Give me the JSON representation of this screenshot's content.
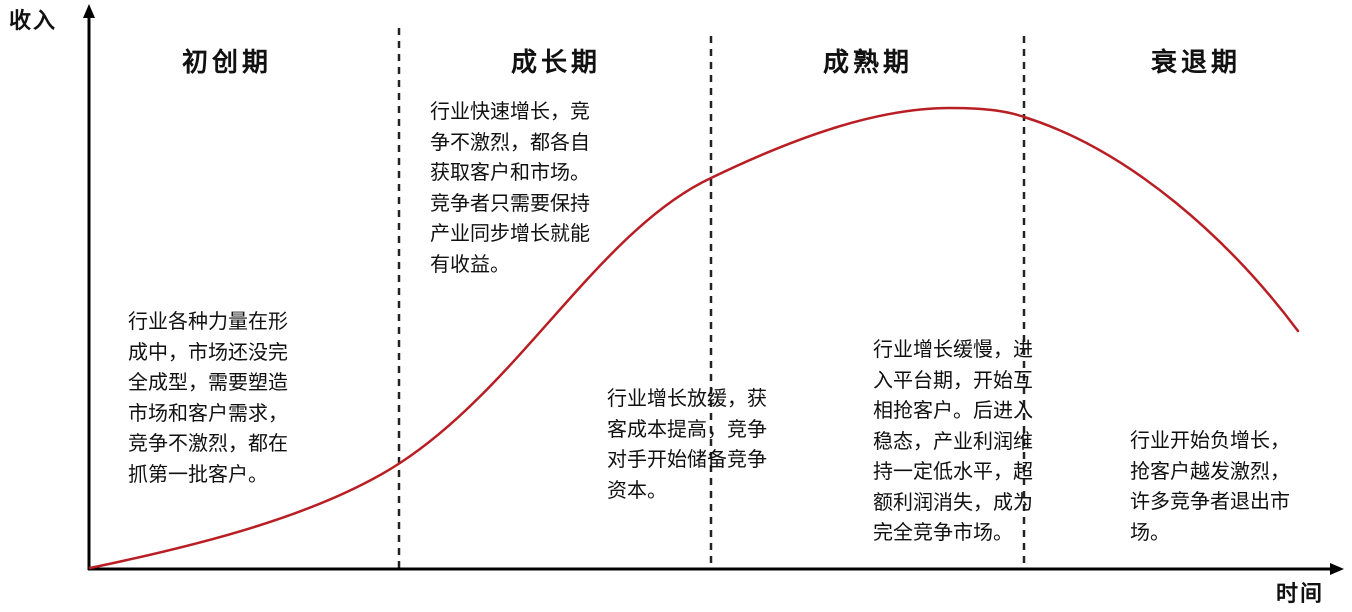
{
  "axes": {
    "y_label": "收入",
    "x_label": "时间"
  },
  "stages": [
    {
      "title": "初创期",
      "descriptions": [
        "行业各种力量在形\n成中，市场还没完\n全成型，需要塑造\n市场和客户需求，\n竞争不激烈，都在\n抓第一批客户。"
      ]
    },
    {
      "title": "成长期",
      "descriptions": [
        "行业快速增长，竞\n争不激烈，都各自\n获取客户和市场。\n竞争者只需要保持\n产业同步增长就能\n有收益。",
        "行业增长放缓，获\n客成本提高，竞争\n对手开始储备竞争\n资本。"
      ]
    },
    {
      "title": "成熟期",
      "descriptions": [
        "行业增长缓慢，进\n入平台期，开始互\n相抢客户。后进入\n稳态，产业利润维\n持一定低水平，超\n额利润消失，成为\n完全竞争市场。"
      ]
    },
    {
      "title": "衰退期",
      "descriptions": [
        "行业开始负增长，\n抢客户越发激烈，\n许多竞争者退出市\n场。"
      ]
    }
  ],
  "colors": {
    "curve": "#b81e24",
    "axis": "#000000",
    "divider": "#222222"
  }
}
